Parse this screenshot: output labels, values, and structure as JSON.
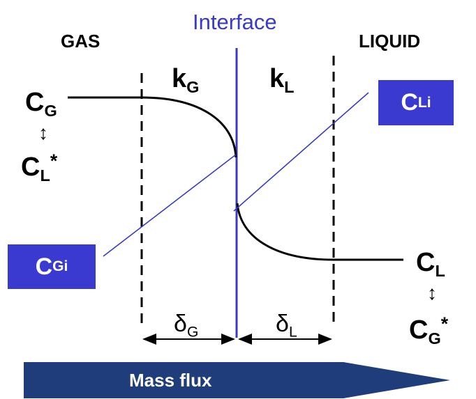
{
  "title": "Interface",
  "regions": {
    "gas": "GAS",
    "liquid": "LIQUID"
  },
  "coefficients": {
    "gas": {
      "main": "k",
      "sub": "G"
    },
    "liquid": {
      "main": "k",
      "sub": "L"
    }
  },
  "concentrations": {
    "c_g": {
      "main": "C",
      "sub": "G"
    },
    "c_l_star": {
      "main": "C",
      "sub": "L",
      "sup": "*"
    },
    "c_li": {
      "main": "C",
      "sub": "Li"
    },
    "c_gi": {
      "main": "C",
      "sub": "Gi"
    },
    "c_l": {
      "main": "C",
      "sub": "L"
    },
    "c_g_star": {
      "main": "C",
      "sub": "G",
      "sup": "*"
    },
    "equivalence_symbol": "↕"
  },
  "films": {
    "gas": {
      "main": "δ",
      "sub": "G"
    },
    "liquid": {
      "main": "δ",
      "sub": "L"
    }
  },
  "flux_arrow": {
    "label": "Mass flux"
  },
  "colors": {
    "interface": "#3a3ac8",
    "box": "#3a3ad0",
    "arrow": "#1f3d7a",
    "curve": "#000000"
  }
}
